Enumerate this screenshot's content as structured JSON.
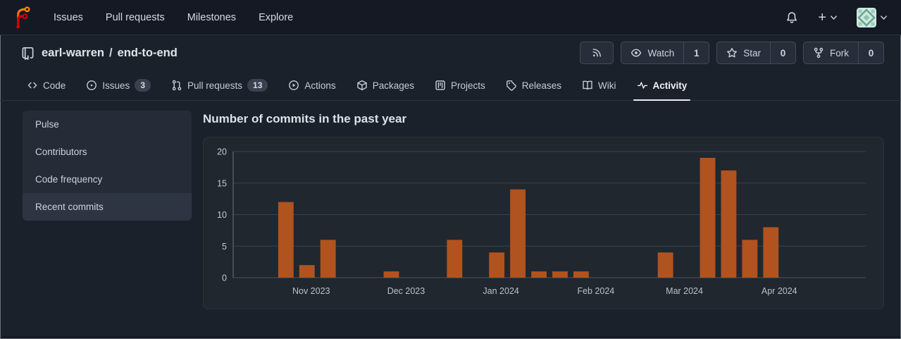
{
  "navbar": {
    "brand": "Forgejo",
    "links": [
      {
        "label": "Issues"
      },
      {
        "label": "Pull requests"
      },
      {
        "label": "Milestones"
      },
      {
        "label": "Explore"
      }
    ]
  },
  "repo_header": {
    "owner": "earl-warren",
    "separator": "/",
    "name": "end-to-end",
    "actions": {
      "watch": {
        "label": "Watch",
        "count": "1"
      },
      "star": {
        "label": "Star",
        "count": "0"
      },
      "fork": {
        "label": "Fork",
        "count": "0"
      }
    }
  },
  "tabs": [
    {
      "label": "Code"
    },
    {
      "label": "Issues",
      "badge": "3"
    },
    {
      "label": "Pull requests",
      "badge": "13"
    },
    {
      "label": "Actions"
    },
    {
      "label": "Packages"
    },
    {
      "label": "Projects"
    },
    {
      "label": "Releases"
    },
    {
      "label": "Wiki"
    },
    {
      "label": "Activity",
      "active": true
    }
  ],
  "sidebar": {
    "items": [
      {
        "label": "Pulse"
      },
      {
        "label": "Contributors"
      },
      {
        "label": "Code frequency"
      },
      {
        "label": "Recent commits",
        "active": true
      }
    ]
  },
  "main": {
    "title": "Number of commits in the past year"
  },
  "chart_data": {
    "type": "bar",
    "title": "Number of commits in the past year",
    "unit": "commits per week",
    "values": [
      0,
      0,
      12,
      2,
      6,
      0,
      0,
      1,
      0,
      0,
      6,
      0,
      4,
      14,
      1,
      1,
      1,
      0,
      0,
      0,
      4,
      0,
      19,
      17,
      6,
      8,
      0,
      0,
      0,
      0
    ],
    "x_ticks": [
      {
        "label": "Nov 2023",
        "week": 3.2
      },
      {
        "label": "Dec 2023",
        "week": 7.7
      },
      {
        "label": "Jan 2024",
        "week": 12.2
      },
      {
        "label": "Feb 2024",
        "week": 16.7
      },
      {
        "label": "Mar 2024",
        "week": 20.9
      },
      {
        "label": "Apr 2024",
        "week": 25.4
      }
    ],
    "y_ticks": [
      0,
      5,
      10,
      15,
      20
    ],
    "ylim": [
      0,
      20
    ],
    "grid": true,
    "legend": "none",
    "bar_color": "#b0531e",
    "grid_color": "#3a414c",
    "axis_color": "#6c737e",
    "tick_text_color": "#c4cad2"
  },
  "colors": {
    "logo_orange": "#ff7a00",
    "logo_red": "#d40000",
    "active_tab_underline": "#e9ecef"
  }
}
